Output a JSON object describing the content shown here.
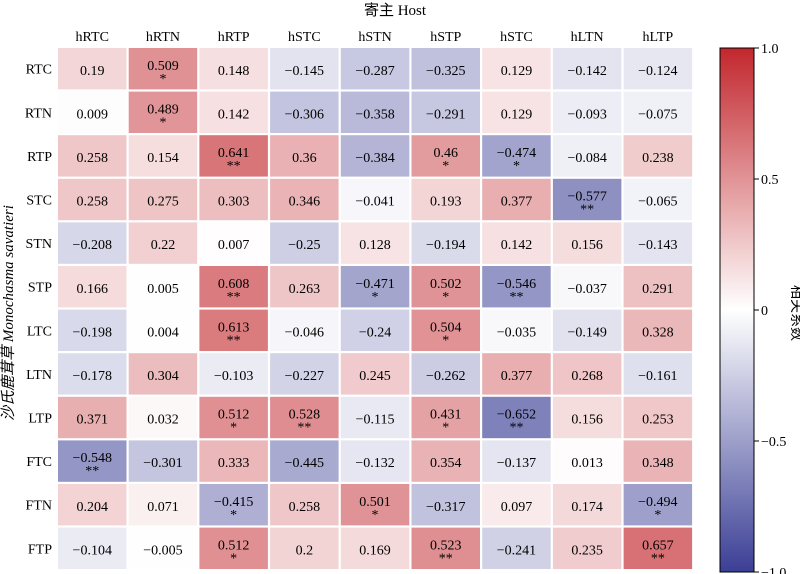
{
  "chart_data": {
    "type": "heatmap",
    "title": "寄主 Host",
    "ylabel": "沙氏鹿茸草 Monochasma savatieri",
    "xlabel": "",
    "columns": [
      "hRTC",
      "hRTN",
      "hRTP",
      "hSTC",
      "hSTN",
      "hSTP",
      "hSTC",
      "hLTN",
      "hLTP"
    ],
    "rows": [
      "RTC",
      "RTN",
      "RTP",
      "STC",
      "STN",
      "STP",
      "LTC",
      "LTN",
      "LTP",
      "FTC",
      "FTN",
      "FTP"
    ],
    "values": [
      [
        0.19,
        0.509,
        0.148,
        -0.145,
        -0.287,
        -0.325,
        0.129,
        -0.142,
        -0.124
      ],
      [
        0.009,
        0.489,
        0.142,
        -0.306,
        -0.358,
        -0.291,
        0.129,
        -0.093,
        -0.075
      ],
      [
        0.258,
        0.154,
        0.641,
        0.36,
        -0.384,
        0.46,
        -0.474,
        -0.084,
        0.238
      ],
      [
        0.258,
        0.275,
        0.303,
        0.346,
        -0.041,
        0.193,
        0.377,
        -0.577,
        -0.065
      ],
      [
        -0.208,
        0.22,
        0.007,
        -0.25,
        0.128,
        -0.194,
        0.142,
        0.156,
        -0.143
      ],
      [
        0.166,
        0.005,
        0.608,
        0.263,
        -0.471,
        0.502,
        -0.546,
        -0.037,
        0.291
      ],
      [
        -0.198,
        0.004,
        0.613,
        -0.046,
        -0.24,
        0.504,
        -0.035,
        -0.149,
        0.328
      ],
      [
        -0.178,
        0.304,
        -0.103,
        -0.227,
        0.245,
        -0.262,
        0.377,
        0.268,
        -0.161
      ],
      [
        0.371,
        0.032,
        0.512,
        0.528,
        -0.115,
        0.431,
        -0.652,
        0.156,
        0.253
      ],
      [
        -0.548,
        -0.301,
        0.333,
        -0.445,
        -0.132,
        0.354,
        -0.137,
        0.013,
        0.348
      ],
      [
        0.204,
        0.071,
        -0.415,
        0.258,
        0.501,
        -0.317,
        0.097,
        0.174,
        -0.494
      ],
      [
        -0.104,
        -0.005,
        0.512,
        0.2,
        0.169,
        0.523,
        -0.241,
        0.235,
        0.657
      ]
    ],
    "value_labels": [
      [
        "0.19",
        "0.509",
        "0.148",
        "−0.145",
        "−0.287",
        "−0.325",
        "0.129",
        "−0.142",
        "−0.124"
      ],
      [
        "0.009",
        "0.489",
        "0.142",
        "−0.306",
        "−0.358",
        "−0.291",
        "0.129",
        "−0.093",
        "−0.075"
      ],
      [
        "0.258",
        "0.154",
        "0.641",
        "0.36",
        "−0.384",
        "0.46",
        "−0.474",
        "−0.084",
        "0.238"
      ],
      [
        "0.258",
        "0.275",
        "0.303",
        "0.346",
        "−0.041",
        "0.193",
        "0.377",
        "−0.577",
        "−0.065"
      ],
      [
        "−0.208",
        "0.22",
        "0.007",
        "−0.25",
        "0.128",
        "−0.194",
        "0.142",
        "0.156",
        "−0.143"
      ],
      [
        "0.166",
        "0.005",
        "0.608",
        "0.263",
        "−0.471",
        "0.502",
        "−0.546",
        "−0.037",
        "0.291"
      ],
      [
        "−0.198",
        "0.004",
        "0.613",
        "−0.046",
        "−0.24",
        "0.504",
        "−0.035",
        "−0.149",
        "0.328"
      ],
      [
        "−0.178",
        "0.304",
        "−0.103",
        "−0.227",
        "0.245",
        "−0.262",
        "0.377",
        "0.268",
        "−0.161"
      ],
      [
        "0.371",
        "0.032",
        "0.512",
        "0.528",
        "−0.115",
        "0.431",
        "−0.652",
        "0.156",
        "0.253"
      ],
      [
        "−0.548",
        "−0.301",
        "0.333",
        "−0.445",
        "−0.132",
        "0.354",
        "−0.137",
        "0.013",
        "0.348"
      ],
      [
        "0.204",
        "0.071",
        "−0.415",
        "0.258",
        "0.501",
        "−0.317",
        "0.097",
        "0.174",
        "−0.494"
      ],
      [
        "−0.104",
        "−0.005",
        "0.512",
        "0.2",
        "0.169",
        "0.523",
        "−0.241",
        "0.235",
        "0.657"
      ]
    ],
    "significance": [
      [
        "",
        "*",
        "",
        "",
        "",
        "",
        "",
        "",
        ""
      ],
      [
        "",
        "*",
        "",
        "",
        "",
        "",
        "",
        "",
        ""
      ],
      [
        "",
        "",
        "**",
        "",
        "",
        "*",
        "*",
        "",
        ""
      ],
      [
        "",
        "",
        "",
        "",
        "",
        "",
        "",
        "**",
        ""
      ],
      [
        "",
        "",
        "",
        "",
        "",
        "",
        "",
        "",
        ""
      ],
      [
        "",
        "",
        "**",
        "",
        "*",
        "*",
        "**",
        "",
        ""
      ],
      [
        "",
        "",
        "**",
        "",
        "",
        "*",
        "",
        "",
        ""
      ],
      [
        "",
        "",
        "",
        "",
        "",
        "",
        "",
        "",
        ""
      ],
      [
        "",
        "",
        "*",
        "**",
        "",
        "*",
        "**",
        "",
        ""
      ],
      [
        "**",
        "",
        "",
        "",
        "",
        "",
        "",
        "",
        ""
      ],
      [
        "",
        "",
        "*",
        "",
        "*",
        "",
        "",
        "",
        "*"
      ],
      [
        "",
        "",
        "*",
        "",
        "",
        "**",
        "",
        "",
        "**"
      ]
    ],
    "colorbar": {
      "label": "相关系数",
      "vmin": -1.0,
      "vmax": 1.0,
      "ticks": [
        1.0,
        0.5,
        0,
        -0.5,
        -1.0
      ],
      "tick_labels": [
        "1.0",
        "0.5",
        "0",
        "−0.5",
        "−1.0"
      ],
      "colors": {
        "negative": "#3b3f95",
        "zero": "#ffffff",
        "positive": "#c2272d"
      }
    },
    "grid": true,
    "legend": "none"
  }
}
